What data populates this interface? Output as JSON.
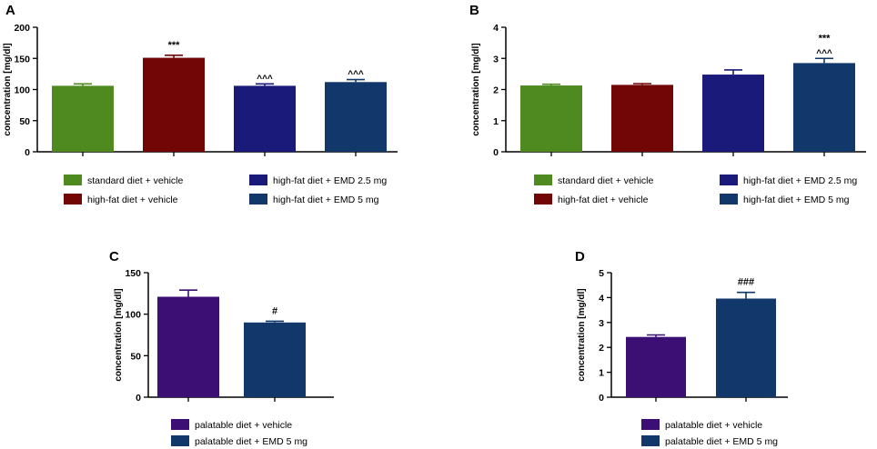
{
  "colors": {
    "green": "#4e8a1f",
    "darkred": "#720607",
    "navy": "#1a1a7a",
    "steelblue": "#12386b",
    "purple": "#3c0f74",
    "axis": "#000000"
  },
  "chart_data": [
    {
      "panel": "A",
      "type": "bar",
      "ylabel": "concentration [mg/dl]",
      "ylim": [
        0,
        200
      ],
      "yticks": [
        0,
        50,
        100,
        150,
        200
      ],
      "categories": [
        "standard diet + vehicle",
        "high-fat diet + vehicle",
        "high-fat diet + EMD 2.5 mg",
        "high-fat diet + EMD 5 mg"
      ],
      "values": [
        106,
        151,
        106,
        112
      ],
      "errors": [
        3,
        4,
        3,
        4
      ],
      "annotations": [
        "",
        "***",
        "^^^",
        "^^^"
      ],
      "bar_colors": [
        "green",
        "darkred",
        "navy",
        "steelblue"
      ],
      "legend": [
        "standard diet + vehicle",
        "high-fat diet + vehicle",
        "high-fat diet + EMD 2.5 mg",
        "high-fat diet + EMD 5 mg"
      ]
    },
    {
      "panel": "B",
      "type": "bar",
      "ylabel": "concentration [mg/dl]",
      "ylim": [
        0,
        4
      ],
      "yticks": [
        0,
        1,
        2,
        3,
        4
      ],
      "categories": [
        "standard diet + vehicle",
        "high-fat diet + vehicle",
        "high-fat diet + EMD 2.5 mg",
        "high-fat diet + EMD 5 mg"
      ],
      "values": [
        2.13,
        2.15,
        2.48,
        2.85
      ],
      "errors": [
        0.04,
        0.04,
        0.15,
        0.15
      ],
      "annotations": [
        "",
        "",
        "",
        "***\n^^^"
      ],
      "bar_colors": [
        "green",
        "darkred",
        "navy",
        "steelblue"
      ],
      "legend": [
        "standard diet + vehicle",
        "high-fat diet + vehicle",
        "high-fat diet + EMD 2.5 mg",
        "high-fat diet + EMD 5 mg"
      ]
    },
    {
      "panel": "C",
      "type": "bar",
      "ylabel": "concentration [mg/dl]",
      "ylim": [
        0,
        150
      ],
      "yticks": [
        0,
        50,
        100,
        150
      ],
      "categories": [
        "palatable diet + vehicle",
        "palatable diet + EMD 5 mg"
      ],
      "values": [
        121,
        90
      ],
      "errors": [
        8,
        1.5
      ],
      "annotations": [
        "",
        "#"
      ],
      "bar_colors": [
        "purple",
        "steelblue"
      ],
      "legend": [
        "palatable diet + vehicle",
        "palatable diet + EMD 5 mg"
      ]
    },
    {
      "panel": "D",
      "type": "bar",
      "ylabel": "concentration [mg/dl]",
      "ylim": [
        0,
        5
      ],
      "yticks": [
        0,
        1,
        2,
        3,
        4,
        5
      ],
      "categories": [
        "palatable diet + vehicle",
        "palatable diet + EMD 5 mg"
      ],
      "values": [
        2.42,
        3.96
      ],
      "errors": [
        0.08,
        0.25
      ],
      "annotations": [
        "",
        "###"
      ],
      "bar_colors": [
        "purple",
        "steelblue"
      ],
      "legend": [
        "palatable diet + vehicle",
        "palatable diet + EMD 5 mg"
      ]
    }
  ]
}
